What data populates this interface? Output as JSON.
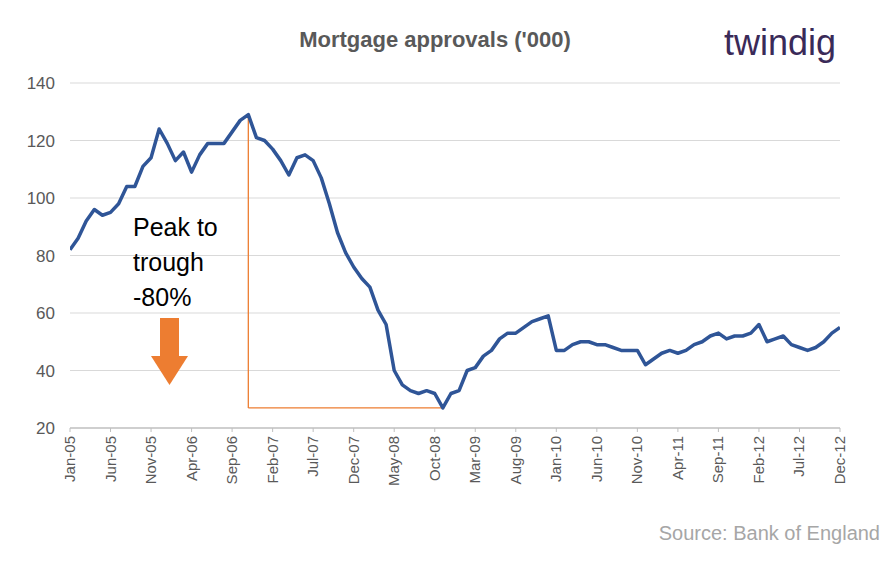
{
  "chart_data": {
    "type": "line",
    "title": "Mortgage approvals ('000)",
    "logo": "twindig",
    "source": "Source: Bank of England",
    "annotation": [
      "Peak to",
      "trough",
      "-80%"
    ],
    "color": "#2f5597",
    "grid": true,
    "ylim": [
      20,
      140
    ],
    "yticks": [
      20,
      40,
      60,
      80,
      100,
      120,
      140
    ],
    "categories": [
      "Jan-05",
      null,
      null,
      null,
      null,
      "Jun-05",
      null,
      null,
      null,
      null,
      "Nov-05",
      null,
      null,
      null,
      null,
      "Apr-06",
      null,
      null,
      null,
      null,
      "Sep-06",
      null,
      null,
      null,
      null,
      "Feb-07",
      null,
      null,
      null,
      null,
      "Jul-07",
      null,
      null,
      null,
      null,
      "Dec-07",
      null,
      null,
      null,
      null,
      "May-08",
      null,
      null,
      null,
      null,
      "Oct-08",
      null,
      null,
      null,
      null,
      "Mar-09",
      null,
      null,
      null,
      null,
      "Aug-09",
      null,
      null,
      null,
      null,
      "Jan-10",
      null,
      null,
      null,
      null,
      "Jun-10",
      null,
      null,
      null,
      null,
      "Nov-10",
      null,
      null,
      null,
      null,
      "Apr-11",
      null,
      null,
      null,
      null,
      "Sep-11",
      null,
      null,
      null,
      null,
      "Feb-12",
      null,
      null,
      null,
      null,
      "Jul-12",
      null,
      null,
      null,
      null,
      "Dec-12"
    ],
    "values": [
      82,
      86,
      92,
      96,
      94,
      95,
      98,
      104,
      104,
      111,
      114,
      124,
      119,
      113,
      116,
      109,
      115,
      119,
      119,
      119,
      123,
      127,
      129,
      121,
      120,
      117,
      113,
      108,
      114,
      115,
      113,
      107,
      98,
      88,
      81,
      76,
      72,
      69,
      61,
      56,
      40,
      35,
      33,
      32,
      33,
      32,
      27,
      32,
      33,
      40,
      41,
      45,
      47,
      51,
      53,
      53,
      55,
      57,
      58,
      59,
      47,
      47,
      49,
      50,
      50,
      49,
      49,
      48,
      47,
      47,
      47,
      42,
      44,
      46,
      47,
      46,
      47,
      49,
      50,
      52,
      53,
      51,
      52,
      52,
      53,
      56,
      50,
      51,
      52,
      49,
      48,
      47,
      48,
      50,
      53,
      55
    ]
  }
}
